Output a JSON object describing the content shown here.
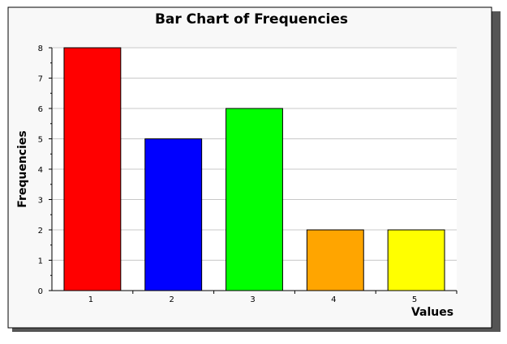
{
  "chart_data": {
    "type": "bar",
    "title": "Bar Chart of Frequencies",
    "xlabel": "Values",
    "ylabel": "Frequencies",
    "categories": [
      "1",
      "2",
      "3",
      "4",
      "5"
    ],
    "values": [
      8,
      5,
      6,
      2,
      2
    ],
    "ylim": [
      0,
      8
    ],
    "yticks": [
      "0",
      "1",
      "2",
      "3",
      "4",
      "5",
      "6",
      "7",
      "8"
    ],
    "grid": true,
    "legend": "none"
  },
  "colors": {
    "panel_background": "#f8f8f8",
    "plot_background": "#ffffff",
    "grid": "#c8c8c8",
    "bars": [
      "#ff0000",
      "#0000ff",
      "#00ff00",
      "#ffa500",
      "#ffff00"
    ]
  }
}
